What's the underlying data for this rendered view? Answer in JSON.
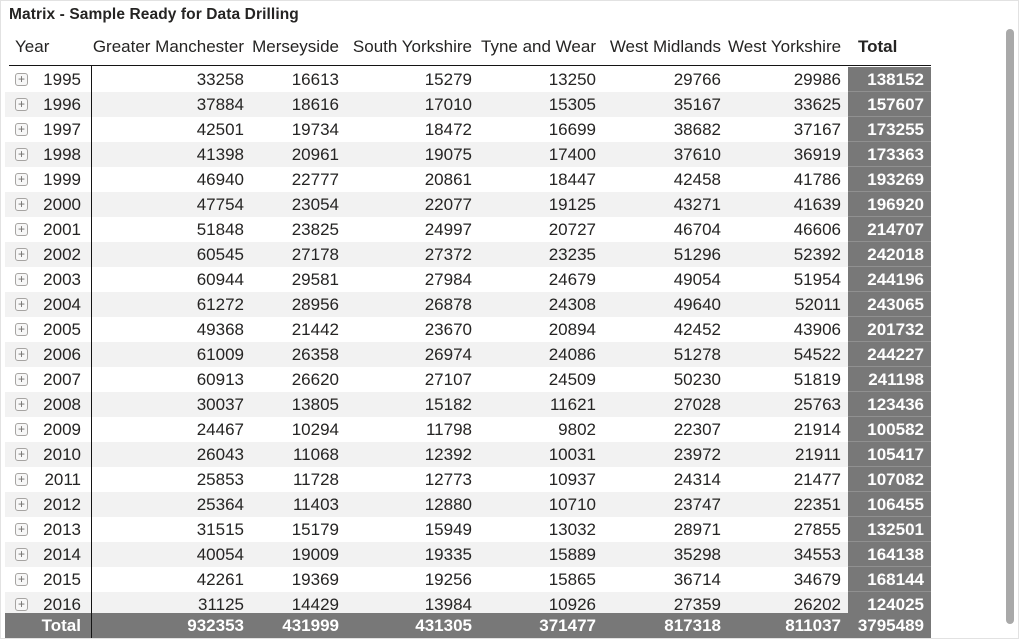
{
  "title": "Matrix - Sample Ready for Data Drilling",
  "columns": [
    {
      "id": "year",
      "label": "Year"
    },
    {
      "id": "greater-manchester",
      "label": "Greater Manchester"
    },
    {
      "id": "merseyside",
      "label": "Merseyside"
    },
    {
      "id": "south-yorkshire",
      "label": "South Yorkshire"
    },
    {
      "id": "tyne-and-wear",
      "label": "Tyne and Wear"
    },
    {
      "id": "west-midlands",
      "label": "West Midlands"
    },
    {
      "id": "west-yorkshire",
      "label": "West Yorkshire"
    },
    {
      "id": "total",
      "label": "Total"
    }
  ],
  "expand_glyph": "+",
  "rows": [
    {
      "year": "1995",
      "values": [
        33258,
        16613,
        15279,
        13250,
        29766,
        29986
      ],
      "total": 138152
    },
    {
      "year": "1996",
      "values": [
        37884,
        18616,
        17010,
        15305,
        35167,
        33625
      ],
      "total": 157607
    },
    {
      "year": "1997",
      "values": [
        42501,
        19734,
        18472,
        16699,
        38682,
        37167
      ],
      "total": 173255
    },
    {
      "year": "1998",
      "values": [
        41398,
        20961,
        19075,
        17400,
        37610,
        36919
      ],
      "total": 173363
    },
    {
      "year": "1999",
      "values": [
        46940,
        22777,
        20861,
        18447,
        42458,
        41786
      ],
      "total": 193269
    },
    {
      "year": "2000",
      "values": [
        47754,
        23054,
        22077,
        19125,
        43271,
        41639
      ],
      "total": 196920
    },
    {
      "year": "2001",
      "values": [
        51848,
        23825,
        24997,
        20727,
        46704,
        46606
      ],
      "total": 214707
    },
    {
      "year": "2002",
      "values": [
        60545,
        27178,
        27372,
        23235,
        51296,
        52392
      ],
      "total": 242018
    },
    {
      "year": "2003",
      "values": [
        60944,
        29581,
        27984,
        24679,
        49054,
        51954
      ],
      "total": 244196
    },
    {
      "year": "2004",
      "values": [
        61272,
        28956,
        26878,
        24308,
        49640,
        52011
      ],
      "total": 243065
    },
    {
      "year": "2005",
      "values": [
        49368,
        21442,
        23670,
        20894,
        42452,
        43906
      ],
      "total": 201732
    },
    {
      "year": "2006",
      "values": [
        61009,
        26358,
        26974,
        24086,
        51278,
        54522
      ],
      "total": 244227
    },
    {
      "year": "2007",
      "values": [
        60913,
        26620,
        27107,
        24509,
        50230,
        51819
      ],
      "total": 241198
    },
    {
      "year": "2008",
      "values": [
        30037,
        13805,
        15182,
        11621,
        27028,
        25763
      ],
      "total": 123436
    },
    {
      "year": "2009",
      "values": [
        24467,
        10294,
        11798,
        9802,
        22307,
        21914
      ],
      "total": 100582
    },
    {
      "year": "2010",
      "values": [
        26043,
        11068,
        12392,
        10031,
        23972,
        21911
      ],
      "total": 105417
    },
    {
      "year": "2011",
      "values": [
        25853,
        11728,
        12773,
        10937,
        24314,
        21477
      ],
      "total": 107082
    },
    {
      "year": "2012",
      "values": [
        25364,
        11403,
        12880,
        10710,
        23747,
        22351
      ],
      "total": 106455
    },
    {
      "year": "2013",
      "values": [
        31515,
        15179,
        15949,
        13032,
        28971,
        27855
      ],
      "total": 132501
    },
    {
      "year": "2014",
      "values": [
        40054,
        19009,
        19335,
        15889,
        35298,
        34553
      ],
      "total": 164138
    },
    {
      "year": "2015",
      "values": [
        42261,
        19369,
        19256,
        15865,
        36714,
        34679
      ],
      "total": 168144
    },
    {
      "year": "2016",
      "values": [
        31125,
        14429,
        13984,
        10926,
        27359,
        26202
      ],
      "total": 124025
    }
  ],
  "grand_total": {
    "label": "Total",
    "values": [
      932353,
      431999,
      431305,
      371477,
      817318,
      811037
    ],
    "total": 3795489
  },
  "colors": {
    "text": "#252423",
    "stripe": "#f2f2f2",
    "total_background": "#787878",
    "total_text": "#ffffff",
    "line": "#141414",
    "scrollbar_thumb": "#a9a9a9",
    "border": "#e2e2e2"
  }
}
